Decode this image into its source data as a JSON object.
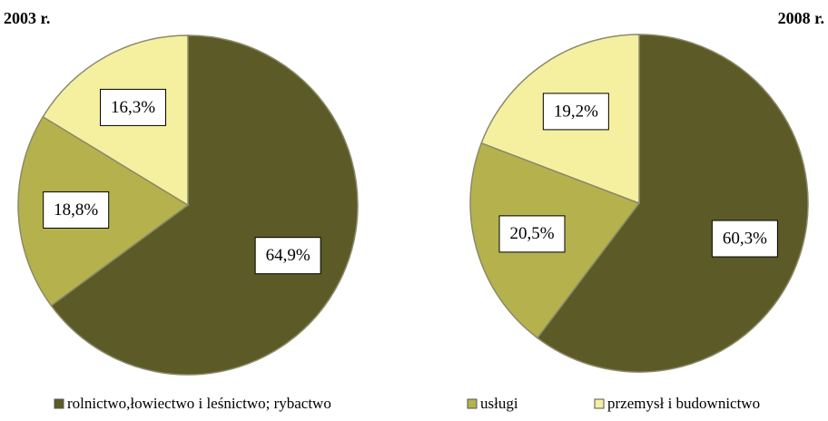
{
  "categories": [
    "rolnictwo,łowiectwo i leśnictwo; rybactwo",
    "usługi",
    "przemysł i budownictwo"
  ],
  "colors": [
    "#5c5a26",
    "#b5b24e",
    "#f5f0a0"
  ],
  "chart_data": [
    {
      "type": "pie",
      "title": "2003 r.",
      "values": [
        64.9,
        18.8,
        16.3
      ],
      "value_labels": [
        "64,9%",
        "18,8%",
        "16,3%"
      ]
    },
    {
      "type": "pie",
      "title": "2008 r.",
      "values": [
        60.3,
        20.5,
        19.2
      ],
      "value_labels": [
        "60,3%",
        "20,5%",
        "19,2%"
      ]
    }
  ]
}
